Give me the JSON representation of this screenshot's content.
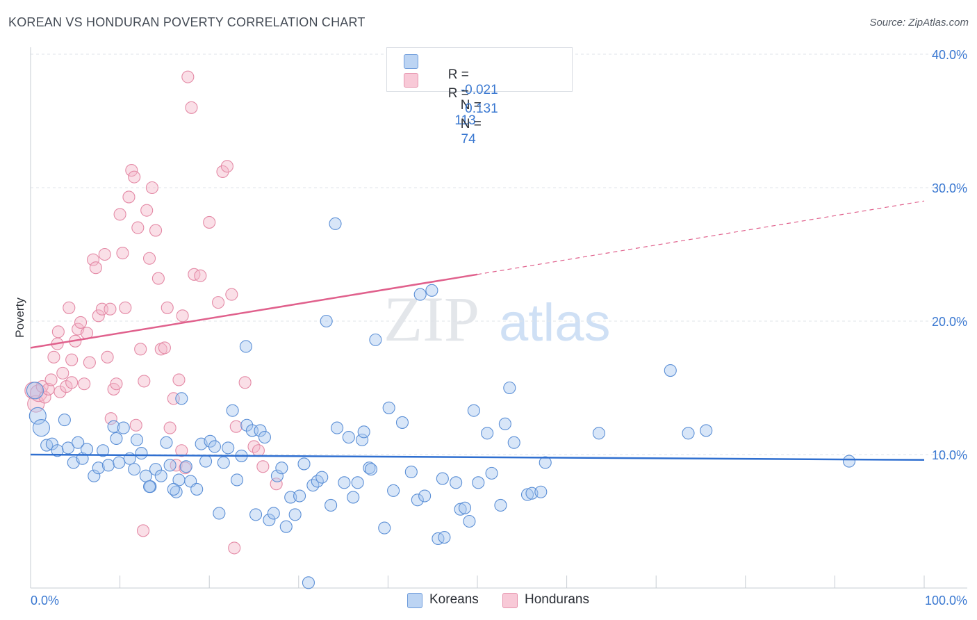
{
  "header": {
    "title": "KOREAN VS HONDURAN POVERTY CORRELATION CHART",
    "source": "Source: ZipAtlas.com"
  },
  "watermark": {
    "zip": "ZIP",
    "atlas": "atlas"
  },
  "colors": {
    "koreans_fill": "#a9c8f0",
    "koreans_stroke": "#5b8fd6",
    "koreans_line": "#2f6fd0",
    "hondurans_fill": "#f5b7c9",
    "hondurans_stroke": "#e48aa6",
    "hondurans_line": "#e0608c",
    "axis_text": "#3a78d1",
    "grid": "#dfe3e8"
  },
  "stats_legend": {
    "koreans": {
      "r_label": "R =",
      "r_value": "-0.021",
      "n_label": "N =",
      "n_value": "113"
    },
    "hondurans": {
      "r_label": "R =",
      "r_value": "0.131",
      "n_label": "N =",
      "n_value": "74"
    }
  },
  "chart_data": {
    "type": "scatter",
    "title": "KOREAN VS HONDURAN POVERTY CORRELATION CHART",
    "xlabel": "",
    "ylabel": "Poverty",
    "xlim": [
      0,
      100
    ],
    "ylim": [
      0,
      40
    ],
    "x_tick_labels": [
      "0.0%",
      "100.0%"
    ],
    "y_tick_labels": [
      "10.0%",
      "20.0%",
      "30.0%",
      "40.0%"
    ],
    "y_ticks": [
      10,
      20,
      30,
      40
    ],
    "grid": true,
    "legend_position": "bottom-center",
    "series": [
      {
        "name": "Koreans",
        "r": -0.021,
        "n": 113,
        "trend": {
          "x": [
            0,
            100
          ],
          "y": [
            10.0,
            9.6
          ],
          "dashed_from": null
        },
        "points": [
          [
            0.5,
            14.8
          ],
          [
            0.8,
            12.9
          ],
          [
            1.2,
            12.0
          ],
          [
            1.8,
            10.7
          ],
          [
            2.4,
            10.8
          ],
          [
            3.0,
            10.3
          ],
          [
            3.8,
            12.6
          ],
          [
            4.2,
            10.5
          ],
          [
            4.8,
            9.4
          ],
          [
            5.3,
            10.9
          ],
          [
            5.8,
            9.7
          ],
          [
            6.3,
            10.4
          ],
          [
            7.1,
            8.4
          ],
          [
            7.6,
            9.0
          ],
          [
            8.1,
            10.3
          ],
          [
            8.7,
            9.2
          ],
          [
            9.3,
            12.1
          ],
          [
            9.9,
            9.4
          ],
          [
            10.4,
            12.0
          ],
          [
            11.1,
            9.7
          ],
          [
            11.6,
            8.9
          ],
          [
            11.9,
            11.1
          ],
          [
            12.4,
            10.1
          ],
          [
            12.9,
            8.4
          ],
          [
            13.4,
            7.6
          ],
          [
            14.0,
            8.9
          ],
          [
            14.6,
            8.4
          ],
          [
            15.2,
            10.9
          ],
          [
            15.6,
            9.2
          ],
          [
            16.3,
            7.2
          ],
          [
            16.6,
            8.1
          ],
          [
            16.9,
            14.2
          ],
          [
            17.4,
            9.1
          ],
          [
            17.9,
            8.0
          ],
          [
            18.6,
            7.4
          ],
          [
            19.1,
            10.8
          ],
          [
            19.6,
            9.5
          ],
          [
            20.1,
            11.0
          ],
          [
            20.6,
            10.6
          ],
          [
            21.1,
            5.6
          ],
          [
            21.6,
            9.4
          ],
          [
            22.1,
            10.5
          ],
          [
            22.6,
            13.3
          ],
          [
            23.1,
            8.1
          ],
          [
            23.6,
            9.9
          ],
          [
            24.1,
            18.1
          ],
          [
            24.2,
            12.2
          ],
          [
            24.8,
            11.8
          ],
          [
            25.2,
            5.5
          ],
          [
            25.7,
            11.8
          ],
          [
            26.2,
            11.3
          ],
          [
            26.7,
            5.1
          ],
          [
            27.2,
            5.6
          ],
          [
            27.6,
            8.4
          ],
          [
            28.1,
            9.0
          ],
          [
            28.6,
            4.6
          ],
          [
            29.1,
            6.8
          ],
          [
            29.6,
            5.5
          ],
          [
            30.1,
            6.9
          ],
          [
            30.6,
            9.3
          ],
          [
            31.1,
            0.4
          ],
          [
            31.6,
            7.7
          ],
          [
            32.1,
            8.0
          ],
          [
            32.6,
            8.3
          ],
          [
            33.1,
            20.0
          ],
          [
            33.6,
            6.2
          ],
          [
            34.1,
            27.3
          ],
          [
            34.3,
            12.0
          ],
          [
            35.1,
            7.9
          ],
          [
            35.6,
            11.3
          ],
          [
            36.1,
            6.8
          ],
          [
            36.6,
            7.9
          ],
          [
            37.1,
            11.1
          ],
          [
            37.3,
            11.7
          ],
          [
            37.9,
            9.0
          ],
          [
            38.1,
            8.9
          ],
          [
            38.6,
            18.6
          ],
          [
            39.6,
            4.5
          ],
          [
            40.1,
            13.5
          ],
          [
            40.6,
            7.3
          ],
          [
            41.6,
            12.4
          ],
          [
            42.6,
            8.7
          ],
          [
            43.3,
            6.6
          ],
          [
            43.6,
            22.0
          ],
          [
            44.1,
            6.9
          ],
          [
            44.9,
            22.3
          ],
          [
            45.6,
            3.7
          ],
          [
            46.1,
            8.2
          ],
          [
            46.3,
            3.8
          ],
          [
            47.6,
            7.9
          ],
          [
            48.1,
            5.9
          ],
          [
            48.6,
            6.0
          ],
          [
            49.1,
            5.0
          ],
          [
            49.6,
            13.3
          ],
          [
            50.1,
            7.9
          ],
          [
            51.1,
            11.6
          ],
          [
            51.6,
            8.6
          ],
          [
            52.6,
            6.2
          ],
          [
            53.1,
            12.3
          ],
          [
            53.6,
            15.0
          ],
          [
            54.1,
            10.9
          ],
          [
            55.6,
            7.0
          ],
          [
            56.1,
            7.1
          ],
          [
            57.1,
            7.2
          ],
          [
            57.6,
            9.4
          ],
          [
            63.6,
            11.6
          ],
          [
            71.6,
            16.3
          ],
          [
            73.6,
            11.6
          ],
          [
            75.6,
            11.8
          ],
          [
            91.6,
            9.5
          ],
          [
            16.0,
            7.4
          ],
          [
            13.3,
            7.6
          ],
          [
            9.6,
            11.2
          ]
        ]
      },
      {
        "name": "Hondurans",
        "r": 0.131,
        "n": 74,
        "trend": {
          "x": [
            0,
            100
          ],
          "y": [
            18.0,
            29.0
          ],
          "dashed_from": 50
        },
        "points": [
          [
            0.3,
            14.8
          ],
          [
            0.6,
            13.8
          ],
          [
            0.9,
            14.6
          ],
          [
            1.3,
            15.1
          ],
          [
            1.6,
            14.3
          ],
          [
            2.0,
            14.9
          ],
          [
            2.3,
            15.6
          ],
          [
            2.6,
            17.3
          ],
          [
            3.0,
            18.3
          ],
          [
            3.3,
            14.7
          ],
          [
            3.6,
            16.1
          ],
          [
            4.0,
            15.1
          ],
          [
            4.3,
            21.0
          ],
          [
            4.6,
            15.4
          ],
          [
            5.0,
            18.5
          ],
          [
            5.3,
            19.4
          ],
          [
            5.6,
            19.9
          ],
          [
            6.0,
            15.3
          ],
          [
            6.3,
            19.1
          ],
          [
            6.6,
            16.9
          ],
          [
            7.0,
            24.6
          ],
          [
            7.3,
            24.0
          ],
          [
            7.6,
            20.4
          ],
          [
            8.0,
            20.9
          ],
          [
            8.3,
            25.0
          ],
          [
            8.6,
            17.3
          ],
          [
            9.0,
            12.7
          ],
          [
            9.3,
            14.9
          ],
          [
            9.6,
            15.3
          ],
          [
            10.0,
            28.0
          ],
          [
            10.3,
            25.1
          ],
          [
            10.6,
            21.0
          ],
          [
            11.0,
            29.3
          ],
          [
            11.3,
            31.3
          ],
          [
            11.6,
            30.8
          ],
          [
            12.0,
            27.0
          ],
          [
            12.3,
            17.9
          ],
          [
            12.6,
            4.3
          ],
          [
            13.0,
            28.3
          ],
          [
            13.3,
            24.7
          ],
          [
            13.6,
            30.0
          ],
          [
            14.0,
            26.8
          ],
          [
            14.3,
            23.2
          ],
          [
            14.6,
            17.9
          ],
          [
            15.0,
            18.0
          ],
          [
            15.3,
            21.0
          ],
          [
            15.6,
            12.0
          ],
          [
            16.0,
            14.2
          ],
          [
            16.3,
            9.2
          ],
          [
            16.6,
            15.6
          ],
          [
            17.0,
            20.4
          ],
          [
            17.3,
            9.0
          ],
          [
            17.6,
            38.3
          ],
          [
            18.0,
            36.0
          ],
          [
            18.3,
            23.5
          ],
          [
            19.0,
            23.4
          ],
          [
            20.0,
            27.4
          ],
          [
            21.0,
            21.4
          ],
          [
            21.5,
            31.2
          ],
          [
            22.0,
            31.6
          ],
          [
            22.5,
            22.0
          ],
          [
            22.8,
            3.0
          ],
          [
            23.0,
            12.1
          ],
          [
            24.0,
            15.4
          ],
          [
            25.0,
            10.6
          ],
          [
            25.5,
            10.3
          ],
          [
            26.0,
            9.1
          ],
          [
            3.1,
            19.2
          ],
          [
            8.9,
            20.9
          ],
          [
            11.8,
            12.2
          ],
          [
            16.9,
            10.3
          ],
          [
            27.5,
            7.8
          ],
          [
            4.6,
            17.1
          ],
          [
            12.7,
            15.5
          ]
        ]
      }
    ]
  },
  "bottom_legend": {
    "koreans": "Koreans",
    "hondurans": "Hondurans"
  }
}
